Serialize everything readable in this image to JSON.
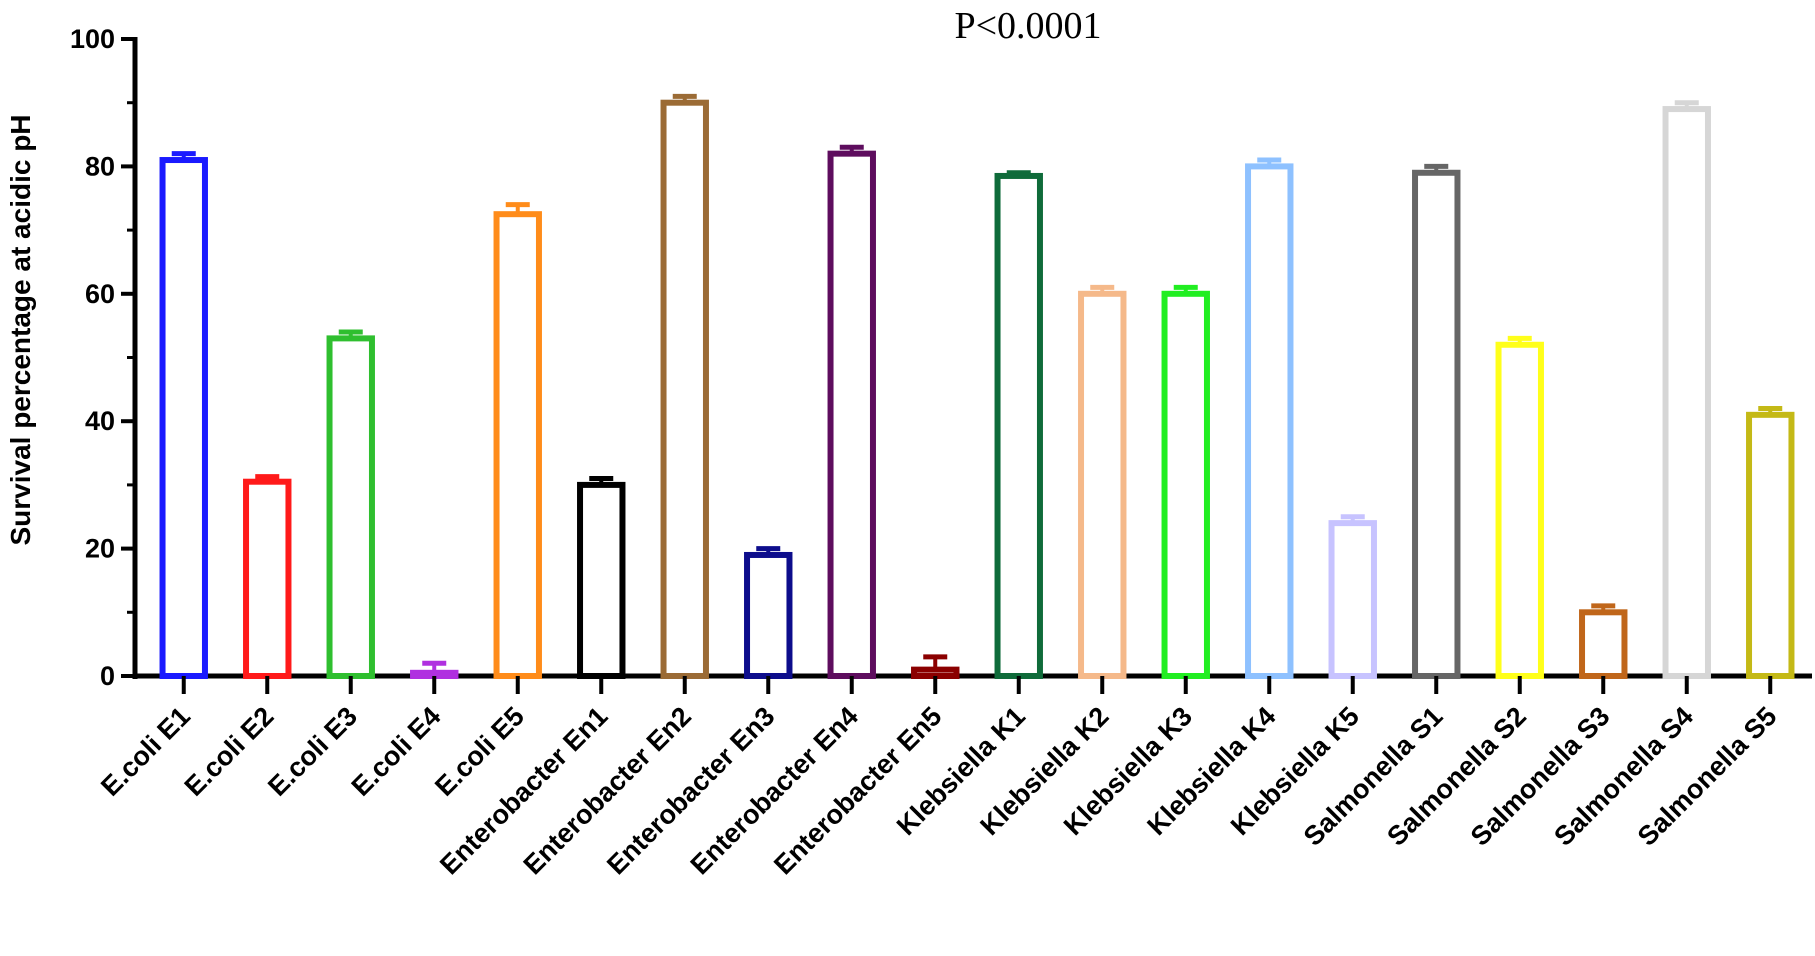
{
  "chart_data": {
    "type": "bar",
    "title": "",
    "annotation": "P<0.0001",
    "xlabel": "",
    "ylabel": "Survival percentage at acidic pH",
    "ylim": [
      0,
      100
    ],
    "yticks": [
      0,
      20,
      40,
      60,
      80,
      100
    ],
    "grid": false,
    "legend": "none",
    "bar_style": "hollow outline with mean ± SD error cap",
    "categories": [
      "E.coli E1",
      "E.coli E2",
      "E.coli E3",
      "E.coli E4",
      "E.coli E5",
      "Enterobacter En1",
      "Enterobacter En2",
      "Enterobacter En3",
      "Enterobacter En4",
      "Enterobacter En5",
      "Klebsiella K1",
      "Klebsiella K2",
      "Klebsiella K3",
      "Klebsiella K4",
      "Klebsiella K5",
      "Salmonella S1",
      "Salmonella S2",
      "Salmonella S3",
      "Salmonella S4",
      "Salmonella S5"
    ],
    "values": [
      81,
      30.5,
      53,
      0.5,
      72.5,
      30,
      90,
      19,
      82,
      1,
      78.5,
      60,
      60,
      80,
      24,
      79,
      52,
      10,
      89,
      41
    ],
    "errors": [
      1,
      0.8,
      1,
      1.5,
      1.5,
      1,
      1,
      1,
      1,
      2,
      0.5,
      1,
      1,
      1,
      1,
      1,
      1,
      1,
      1,
      1
    ],
    "colors": [
      "#1a1aff",
      "#ff1a1a",
      "#2fbf2f",
      "#b030e0",
      "#ff8c1a",
      "#000000",
      "#9b6b35",
      "#0d0d8c",
      "#5e0d5e",
      "#8b0000",
      "#0f6b3a",
      "#f5b98a",
      "#21ee21",
      "#8ec1ff",
      "#c7c3ff",
      "#666666",
      "#ffff1a",
      "#c0661a",
      "#d6d6d6",
      "#c4b916"
    ]
  }
}
